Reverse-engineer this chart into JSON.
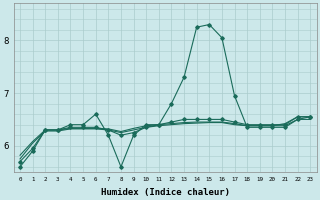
{
  "xlabel": "Humidex (Indice chaleur)",
  "bg_color": "#cce8ea",
  "grid_color": "#aacccc",
  "line_color": "#1a6b5a",
  "xlim": [
    -0.5,
    23.5
  ],
  "ylim": [
    5.5,
    8.7
  ],
  "yticks": [
    6,
    7,
    8
  ],
  "xticks": [
    0,
    1,
    2,
    3,
    4,
    5,
    6,
    7,
    8,
    9,
    10,
    11,
    12,
    13,
    14,
    15,
    16,
    17,
    18,
    19,
    20,
    21,
    22,
    23
  ],
  "line1_x": [
    0,
    1,
    2,
    3,
    4,
    5,
    6,
    7,
    8,
    9,
    10,
    11,
    12,
    13,
    14,
    15,
    16,
    17,
    18,
    19,
    20,
    21,
    22,
    23
  ],
  "line1_y": [
    5.6,
    5.9,
    6.3,
    6.3,
    6.4,
    6.4,
    6.6,
    6.2,
    5.6,
    6.2,
    6.4,
    6.4,
    6.8,
    7.3,
    8.25,
    8.3,
    8.05,
    6.95,
    6.35,
    6.35,
    6.35,
    6.35,
    6.5,
    6.55
  ],
  "line2_x": [
    0,
    1,
    2,
    3,
    4,
    5,
    6,
    7,
    8,
    9,
    10,
    11,
    12,
    13,
    14,
    15,
    16,
    17,
    18,
    19,
    20,
    21,
    22,
    23
  ],
  "line2_y": [
    5.7,
    5.95,
    6.3,
    6.3,
    6.35,
    6.35,
    6.35,
    6.3,
    6.2,
    6.25,
    6.35,
    6.4,
    6.45,
    6.5,
    6.5,
    6.5,
    6.5,
    6.45,
    6.4,
    6.4,
    6.4,
    6.4,
    6.55,
    6.55
  ],
  "line3_x": [
    0,
    1,
    2,
    3,
    4,
    5,
    6,
    7,
    8,
    9,
    10,
    11,
    12,
    13,
    14,
    15,
    16,
    17,
    18,
    19,
    20,
    21,
    22,
    23
  ],
  "line3_y": [
    5.75,
    6.05,
    6.28,
    6.28,
    6.32,
    6.32,
    6.32,
    6.3,
    6.25,
    6.3,
    6.35,
    6.38,
    6.4,
    6.42,
    6.43,
    6.44,
    6.44,
    6.4,
    6.38,
    6.38,
    6.38,
    6.38,
    6.5,
    6.5
  ],
  "line4_x": [
    0,
    1,
    2,
    3,
    4,
    5,
    6,
    7,
    8,
    9,
    10,
    11,
    12,
    13,
    14,
    15,
    16,
    17,
    18,
    19,
    20,
    21,
    22,
    23
  ],
  "line4_y": [
    5.82,
    6.08,
    6.3,
    6.3,
    6.33,
    6.33,
    6.33,
    6.32,
    6.27,
    6.33,
    6.38,
    6.4,
    6.42,
    6.44,
    6.45,
    6.45,
    6.45,
    6.42,
    6.38,
    6.38,
    6.38,
    6.42,
    6.55,
    6.55
  ]
}
